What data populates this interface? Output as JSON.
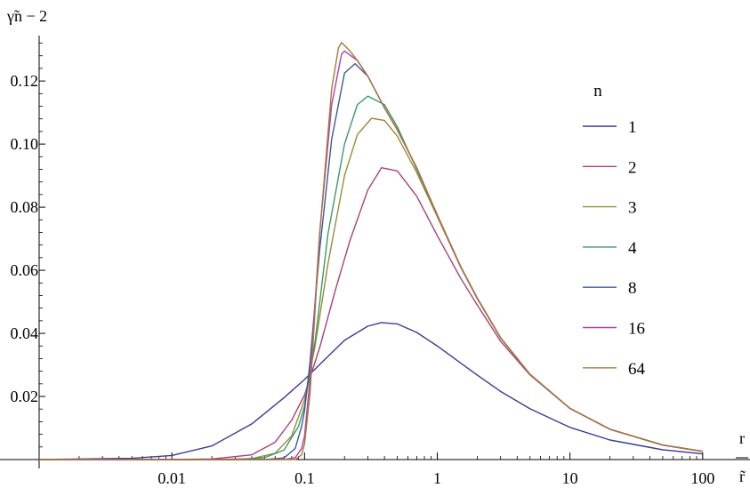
{
  "chart_data": {
    "type": "line",
    "xscale": "log",
    "xlim": [
      0.001,
      110
    ],
    "ylim": [
      0,
      0.133
    ],
    "ylabel": "γ̃n − 2",
    "xlabel_top": "r",
    "xlabel_bottom": "r̃",
    "grid": false,
    "legend_title": "n",
    "legend_position": "right",
    "x_ticks": [
      {
        "value": 0.01,
        "label": "0.01"
      },
      {
        "value": 0.1,
        "label": "0.1"
      },
      {
        "value": 1,
        "label": "1"
      },
      {
        "value": 10,
        "label": "10"
      },
      {
        "value": 100,
        "label": "100"
      }
    ],
    "y_ticks": [
      {
        "value": 0.02,
        "label": "0.02"
      },
      {
        "value": 0.04,
        "label": "0.04"
      },
      {
        "value": 0.06,
        "label": "0.06"
      },
      {
        "value": 0.08,
        "label": "0.08"
      },
      {
        "value": 0.1,
        "label": "0.10"
      },
      {
        "value": 0.12,
        "label": "0.12"
      }
    ],
    "series": [
      {
        "name": "1",
        "color": "#3b3b96",
        "x": [
          0.001,
          0.005,
          0.01,
          0.02,
          0.04,
          0.07,
          0.1,
          0.15,
          0.2,
          0.3,
          0.38,
          0.5,
          0.7,
          1,
          1.5,
          2,
          3,
          5,
          10,
          20,
          50,
          100
        ],
        "y": [
          0.0,
          0.0004,
          0.0013,
          0.0043,
          0.0113,
          0.0196,
          0.0254,
          0.0327,
          0.0378,
          0.0423,
          0.0434,
          0.043,
          0.0403,
          0.036,
          0.0306,
          0.0268,
          0.0216,
          0.0161,
          0.0102,
          0.0062,
          0.0031,
          0.0018
        ]
      },
      {
        "name": "2",
        "color": "#a8407a",
        "x": [
          0.001,
          0.01,
          0.02,
          0.04,
          0.06,
          0.08,
          0.1,
          0.13,
          0.17,
          0.22,
          0.3,
          0.38,
          0.5,
          0.7,
          1,
          1.5,
          2,
          3,
          5,
          10,
          20,
          50,
          100
        ],
        "y": [
          0.0,
          0.0,
          0.0002,
          0.0015,
          0.0055,
          0.0125,
          0.0205,
          0.0355,
          0.0535,
          0.0695,
          0.0855,
          0.0925,
          0.0915,
          0.0835,
          0.071,
          0.0575,
          0.049,
          0.0375,
          0.0268,
          0.0162,
          0.0096,
          0.0046,
          0.0026
        ]
      },
      {
        "name": "3",
        "color": "#9a8a3a",
        "x": [
          0.001,
          0.02,
          0.04,
          0.06,
          0.08,
          0.1,
          0.12,
          0.15,
          0.2,
          0.25,
          0.32,
          0.4,
          0.5,
          0.7,
          1,
          1.5,
          2,
          3,
          5,
          10,
          20,
          50,
          100
        ],
        "y": [
          0.0,
          0.0,
          0.0003,
          0.002,
          0.0075,
          0.019,
          0.036,
          0.062,
          0.09,
          0.103,
          0.1082,
          0.1075,
          0.1025,
          0.091,
          0.077,
          0.061,
          0.051,
          0.0385,
          0.027,
          0.0162,
          0.0096,
          0.0046,
          0.0026
        ]
      },
      {
        "name": "4",
        "color": "#3a9a6a",
        "x": [
          0.001,
          0.03,
          0.05,
          0.07,
          0.09,
          0.1,
          0.12,
          0.15,
          0.2,
          0.25,
          0.3,
          0.4,
          0.5,
          0.7,
          1,
          1.5,
          2,
          3,
          5,
          10,
          20,
          50,
          100
        ],
        "y": [
          0.0,
          0.0,
          0.0006,
          0.003,
          0.0105,
          0.017,
          0.0375,
          0.0715,
          0.1,
          0.1125,
          0.1152,
          0.1125,
          0.1055,
          0.092,
          0.0775,
          0.0612,
          0.0512,
          0.0386,
          0.027,
          0.0162,
          0.0096,
          0.0046,
          0.0026
        ]
      },
      {
        "name": "8",
        "color": "#3b5a9a",
        "x": [
          0.001,
          0.05,
          0.07,
          0.085,
          0.095,
          0.1,
          0.11,
          0.13,
          0.16,
          0.2,
          0.24,
          0.3,
          0.4,
          0.5,
          0.7,
          1,
          1.5,
          2,
          3,
          5,
          10,
          20,
          50,
          100
        ],
        "y": [
          0.0,
          0.0,
          0.0005,
          0.0035,
          0.0105,
          0.0155,
          0.031,
          0.0665,
          0.1015,
          0.1225,
          0.1255,
          0.1215,
          0.1115,
          0.1045,
          0.0925,
          0.0775,
          0.0612,
          0.0512,
          0.0386,
          0.027,
          0.0162,
          0.0096,
          0.0046,
          0.0026
        ]
      },
      {
        "name": "16",
        "color": "#b040a8",
        "x": [
          0.001,
          0.07,
          0.085,
          0.095,
          0.1,
          0.11,
          0.13,
          0.16,
          0.19,
          0.2,
          0.25,
          0.3,
          0.4,
          0.5,
          0.7,
          1,
          1.5,
          2,
          3,
          5,
          10,
          20,
          50,
          100
        ],
        "y": [
          0.0,
          0.0,
          0.0006,
          0.0035,
          0.0075,
          0.0255,
          0.072,
          0.1125,
          0.1285,
          0.1295,
          0.1265,
          0.1215,
          0.1115,
          0.1045,
          0.0925,
          0.0775,
          0.0612,
          0.0512,
          0.0386,
          0.027,
          0.0162,
          0.0096,
          0.0046,
          0.0026
        ]
      },
      {
        "name": "64",
        "color": "#a8783a",
        "x": [
          0.001,
          0.085,
          0.095,
          0.1,
          0.11,
          0.13,
          0.16,
          0.18,
          0.19,
          0.22,
          0.25,
          0.3,
          0.4,
          0.5,
          0.7,
          1,
          1.5,
          2,
          3,
          5,
          10,
          20,
          50,
          100
        ],
        "y": [
          0.0,
          0.0,
          0.0015,
          0.005,
          0.021,
          0.0715,
          0.1175,
          0.1305,
          0.1322,
          0.1295,
          0.1265,
          0.1215,
          0.1115,
          0.1045,
          0.0925,
          0.0775,
          0.0612,
          0.0512,
          0.0386,
          0.027,
          0.0162,
          0.0096,
          0.0046,
          0.0026
        ]
      }
    ]
  }
}
